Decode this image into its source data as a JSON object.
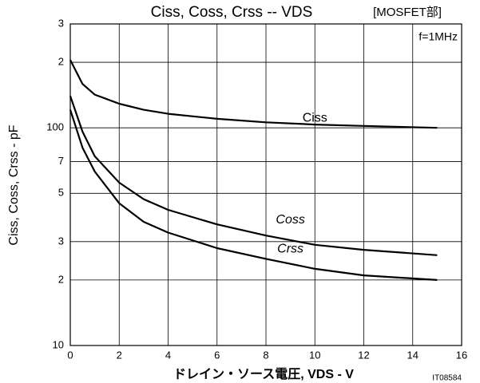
{
  "chart_data": {
    "type": "line",
    "title": "Ciss, Coss, Crss -- VDS",
    "subtitle": "[MOSFET部]",
    "x_label": "ドレイン・ソース電圧, VDS - V",
    "y_label": "Ciss, Coss, Crss - pF",
    "annotations": [
      "f=1MHz",
      "IT08584"
    ],
    "x": [
      0,
      0.5,
      1,
      2,
      3,
      4,
      6,
      8,
      10,
      12,
      15
    ],
    "series": [
      {
        "name": "Ciss",
        "color": "#000000",
        "values": [
          205,
          159,
          142,
          129,
          121,
          116,
          110,
          106,
          103.5,
          102,
          100
        ]
      },
      {
        "name": "Coss",
        "color": "#000000",
        "values": [
          140,
          96,
          74,
          56,
          47,
          42,
          36,
          32,
          29,
          27.5,
          26
        ]
      },
      {
        "name": "Crss",
        "color": "#000000",
        "values": [
          121,
          81,
          63,
          45,
          37,
          33,
          28,
          25,
          22.5,
          21,
          20
        ]
      }
    ],
    "xlim": [
      0,
      16
    ],
    "xticks": [
      0,
      2,
      4,
      6,
      8,
      10,
      12,
      14,
      16
    ],
    "ylim": [
      10,
      300
    ],
    "log_y": true,
    "grid": true,
    "yticks": [
      10,
      {
        "value": 20,
        "label": "2"
      },
      {
        "value": 30,
        "label": "3"
      },
      {
        "value": 50,
        "label": "5"
      },
      {
        "value": 70,
        "label": "7"
      },
      100,
      {
        "value": 200,
        "label": "2"
      },
      {
        "value": 300,
        "label": "3"
      }
    ]
  }
}
